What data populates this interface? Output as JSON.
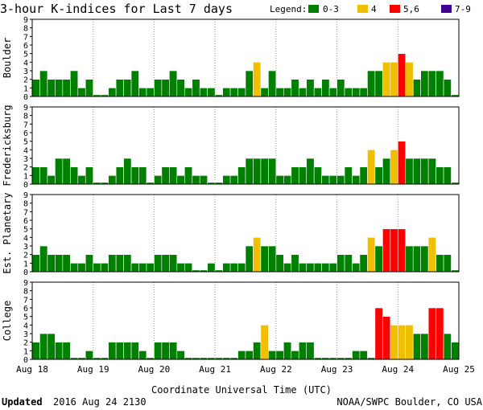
{
  "title": "3-hour K-indices for Last 7 days",
  "legend": {
    "label": "Legend:",
    "items": [
      {
        "text": "0-3",
        "color": "#008000"
      },
      {
        "text": "4",
        "color": "#f0c000"
      },
      {
        "text": "5,6",
        "color": "#ff0000"
      },
      {
        "text": "7-9",
        "color": "#400090"
      }
    ]
  },
  "footer": {
    "updated_label": "Updated",
    "updated_value": "2016 Aug 24 2130",
    "source": "NOAA/SWPC Boulder, CO USA"
  },
  "chart_data": [
    {
      "type": "bar",
      "station": "Boulder",
      "ylim": [
        0,
        9
      ],
      "yticks": [
        "0",
        "1",
        "2",
        "3",
        "4",
        "5",
        "6",
        "7",
        "8",
        "9"
      ],
      "xlabel": "",
      "x_ticks": [
        "Aug 18",
        "Aug 19",
        "Aug 20",
        "Aug 21",
        "Aug 22",
        "Aug 23",
        "Aug 24",
        "Aug 25"
      ],
      "values": [
        2,
        3,
        2,
        2,
        2,
        3,
        1,
        2,
        0,
        0,
        1,
        2,
        2,
        3,
        1,
        1,
        2,
        2,
        3,
        2,
        1,
        2,
        1,
        1,
        0,
        1,
        1,
        1,
        3,
        4,
        1,
        3,
        1,
        1,
        2,
        1,
        2,
        1,
        2,
        1,
        2,
        1,
        1,
        1,
        3,
        3,
        4,
        4,
        5,
        4,
        2,
        3,
        3,
        3,
        2,
        0
      ]
    },
    {
      "type": "bar",
      "station": "Fredericksburg",
      "ylim": [
        0,
        9
      ],
      "yticks": [
        "0",
        "1",
        "2",
        "3",
        "4",
        "5",
        "6",
        "7",
        "8",
        "9"
      ],
      "xlabel": "",
      "x_ticks": [
        "Aug 18",
        "Aug 19",
        "Aug 20",
        "Aug 21",
        "Aug 22",
        "Aug 23",
        "Aug 24",
        "Aug 25"
      ],
      "values": [
        2,
        2,
        1,
        3,
        3,
        2,
        1,
        2,
        0,
        0,
        1,
        2,
        3,
        2,
        2,
        0,
        1,
        2,
        2,
        1,
        2,
        1,
        1,
        0,
        0,
        1,
        1,
        2,
        3,
        3,
        3,
        3,
        1,
        1,
        2,
        2,
        3,
        2,
        1,
        1,
        1,
        2,
        1,
        2,
        4,
        2,
        3,
        4,
        5,
        3,
        3,
        3,
        3,
        2,
        2,
        0
      ]
    },
    {
      "type": "bar",
      "station": "Est. Planetary",
      "ylim": [
        0,
        9
      ],
      "yticks": [
        "0",
        "1",
        "2",
        "3",
        "4",
        "5",
        "6",
        "7",
        "8",
        "9"
      ],
      "xlabel": "",
      "x_ticks": [
        "Aug 18",
        "Aug 19",
        "Aug 20",
        "Aug 21",
        "Aug 22",
        "Aug 23",
        "Aug 24",
        "Aug 25"
      ],
      "values": [
        2,
        3,
        2,
        2,
        2,
        1,
        1,
        2,
        1,
        1,
        2,
        2,
        2,
        1,
        1,
        1,
        2,
        2,
        2,
        1,
        1,
        0,
        0,
        1,
        0,
        1,
        1,
        1,
        3,
        4,
        3,
        3,
        2,
        1,
        2,
        1,
        1,
        1,
        1,
        1,
        2,
        2,
        1,
        2,
        4,
        3,
        5,
        5,
        5,
        3,
        3,
        3,
        4,
        2,
        2,
        0
      ]
    },
    {
      "type": "bar",
      "station": "College",
      "ylim": [
        0,
        9
      ],
      "yticks": [
        "0",
        "1",
        "2",
        "3",
        "4",
        "5",
        "6",
        "7",
        "8",
        "9"
      ],
      "xlabel": "Coordinate Universal Time (UTC)",
      "x_ticks": [
        "Aug 18",
        "Aug 19",
        "Aug 20",
        "Aug 21",
        "Aug 22",
        "Aug 23",
        "Aug 24",
        "Aug 25"
      ],
      "values": [
        2,
        3,
        3,
        2,
        2,
        0,
        0,
        1,
        0,
        0,
        2,
        2,
        2,
        2,
        1,
        0,
        2,
        2,
        2,
        1,
        0,
        0,
        0,
        0,
        0,
        0,
        0,
        1,
        1,
        2,
        4,
        1,
        1,
        2,
        1,
        2,
        2,
        0,
        0,
        0,
        0,
        0,
        1,
        1,
        0,
        6,
        5,
        4,
        4,
        4,
        3,
        3,
        6,
        6,
        3,
        2
      ]
    }
  ]
}
